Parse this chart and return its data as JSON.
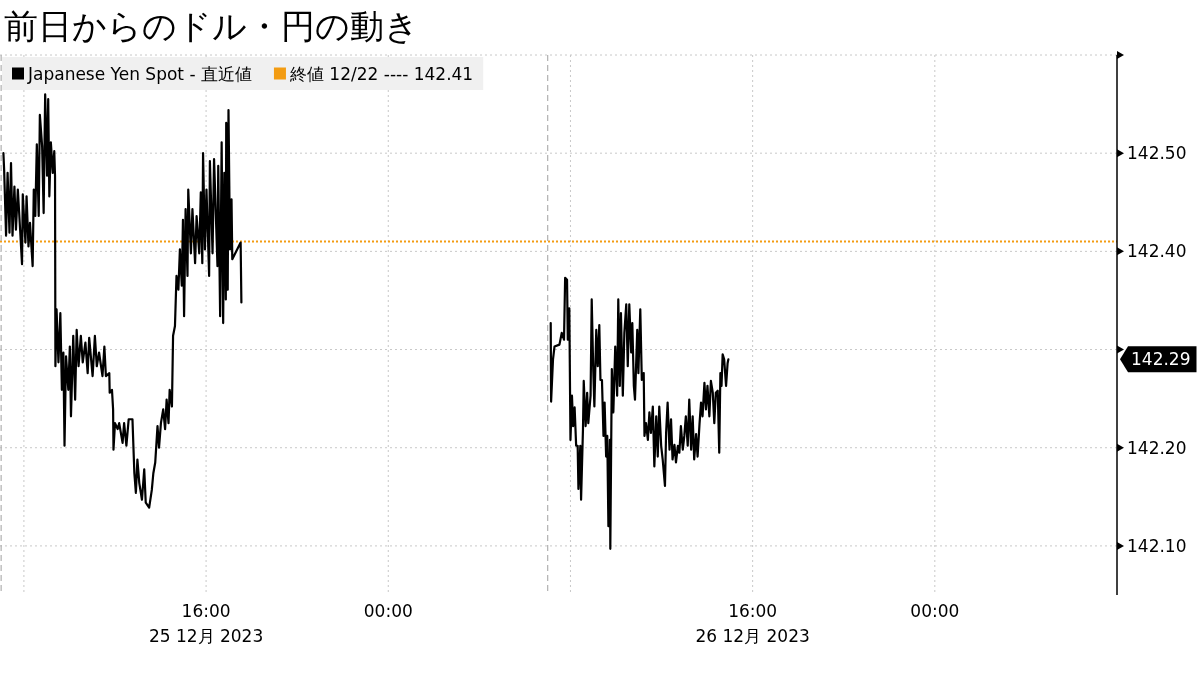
{
  "chart_data": {
    "type": "line",
    "title": "前日からのドル・円の動き",
    "series": [
      {
        "name": "Japanese Yen Spot - 直近値",
        "color": "#000000",
        "x": [
          "2023-12-25T07:06",
          "2023-12-25T07:08",
          "2023-12-25T07:13",
          "2023-12-25T07:17",
          "2023-12-25T07:22",
          "2023-12-25T07:26",
          "2023-12-25T07:30",
          "2023-12-25T07:35",
          "2023-12-25T07:39",
          "2023-12-25T07:44",
          "2023-12-25T07:50",
          "2023-12-25T07:55",
          "2023-12-25T07:57",
          "2023-12-25T08:04",
          "2023-12-25T08:07",
          "2023-12-25T08:12",
          "2023-12-25T08:16",
          "2023-12-25T08:23",
          "2023-12-25T08:26",
          "2023-12-25T08:30",
          "2023-12-25T08:34",
          "2023-12-25T08:39",
          "2023-12-25T08:42",
          "2023-12-25T08:48",
          "2023-12-25T08:52",
          "2023-12-25T08:56",
          "2023-12-25T09:01",
          "2023-12-25T09:04",
          "2023-12-25T09:07",
          "2023-12-25T09:11",
          "2023-12-25T09:16",
          "2023-12-25T09:20",
          "2023-12-25T09:22",
          "2023-12-25T09:23",
          "2023-12-25T09:26",
          "2023-12-25T09:31",
          "2023-12-25T09:36",
          "2023-12-25T09:40",
          "2023-12-25T09:44",
          "2023-12-25T09:47",
          "2023-12-25T09:51",
          "2023-12-25T09:57",
          "2023-12-25T10:01",
          "2023-12-25T10:04",
          "2023-12-25T10:10",
          "2023-12-25T10:15",
          "2023-12-25T10:19",
          "2023-12-25T10:24",
          "2023-12-25T10:30",
          "2023-12-25T10:35",
          "2023-12-25T10:42",
          "2023-12-25T10:48",
          "2023-12-25T10:52",
          "2023-12-25T11:01",
          "2023-12-25T11:07",
          "2023-12-25T11:12",
          "2023-12-25T11:18",
          "2023-12-25T11:27",
          "2023-12-25T11:32",
          "2023-12-25T11:36",
          "2023-12-25T11:45",
          "2023-12-25T11:46",
          "2023-12-25T11:52",
          "2023-12-25T11:55",
          "2023-12-25T11:56",
          "2023-12-25T12:00",
          "2023-12-25T12:07",
          "2023-12-25T12:11",
          "2023-12-25T12:20",
          "2023-12-25T12:24",
          "2023-12-25T12:30",
          "2023-12-25T12:36",
          "2023-12-25T12:46",
          "2023-12-25T12:51",
          "2023-12-25T12:55",
          "2023-12-25T12:59",
          "2023-12-25T13:04",
          "2023-12-25T13:11",
          "2023-12-25T13:17",
          "2023-12-25T13:21",
          "2023-12-25T13:30",
          "2023-12-25T13:37",
          "2023-12-25T13:41",
          "2023-12-25T13:46",
          "2023-12-25T13:52",
          "2023-12-25T13:56",
          "2023-12-25T14:01",
          "2023-12-25T14:07",
          "2023-12-25T14:12",
          "2023-12-25T14:16",
          "2023-12-25T14:21",
          "2023-12-25T14:24",
          "2023-12-25T14:30",
          "2023-12-25T14:33",
          "2023-12-25T14:38",
          "2023-12-25T14:42",
          "2023-12-25T14:47",
          "2023-12-25T14:51",
          "2023-12-25T14:56",
          "2023-12-25T14:59",
          "2023-12-25T15:02",
          "2023-12-25T15:06",
          "2023-12-25T15:11",
          "2023-12-25T15:13",
          "2023-12-25T15:20",
          "2023-12-25T15:24",
          "2023-12-25T15:31",
          "2023-12-25T15:35",
          "2023-12-25T15:42",
          "2023-12-25T15:46",
          "2023-12-25T15:50",
          "2023-12-25T15:52",
          "2023-12-25T15:57",
          "2023-12-25T16:01",
          "2023-12-25T16:08",
          "2023-12-25T16:10",
          "2023-12-25T16:17",
          "2023-12-25T16:21",
          "2023-12-25T16:30",
          "2023-12-25T16:32",
          "2023-12-25T16:37",
          "2023-12-25T16:41",
          "2023-12-25T16:45",
          "2023-12-25T16:48",
          "2023-12-25T16:52",
          "2023-12-25T16:53",
          "2023-12-25T16:57",
          "2023-12-25T16:59",
          "2023-12-25T17:03",
          "2023-12-25T17:07",
          "2023-12-25T17:09",
          "2023-12-25T17:31",
          "2023-12-25T17:33"
        ],
        "values": [
          142.5,
          142.482,
          142.416,
          142.48,
          142.419,
          142.49,
          142.416,
          142.466,
          142.422,
          142.463,
          142.422,
          142.387,
          142.458,
          142.409,
          142.456,
          142.405,
          142.429,
          142.385,
          142.463,
          142.436,
          142.509,
          142.436,
          142.539,
          142.507,
          142.439,
          142.56,
          142.477,
          142.555,
          142.456,
          142.511,
          142.48,
          142.502,
          142.477,
          142.283,
          142.341,
          142.287,
          142.337,
          142.259,
          142.297,
          142.202,
          142.293,
          142.259,
          142.303,
          142.232,
          142.314,
          142.249,
          142.32,
          142.283,
          142.314,
          142.287,
          142.307,
          142.276,
          142.312,
          142.273,
          142.314,
          142.283,
          142.297,
          142.273,
          142.303,
          142.273,
          142.276,
          142.256,
          142.259,
          142.239,
          142.198,
          142.225,
          142.219,
          142.225,
          142.205,
          142.225,
          142.202,
          142.229,
          142.229,
          142.174,
          142.154,
          142.188,
          142.164,
          142.147,
          142.178,
          142.144,
          142.139,
          142.157,
          142.174,
          142.185,
          142.222,
          142.2,
          142.225,
          142.239,
          142.219,
          142.249,
          142.225,
          142.259,
          142.242,
          142.314,
          142.324,
          142.375,
          142.361,
          142.402,
          142.365,
          142.432,
          142.334,
          142.443,
          142.375,
          142.463,
          142.398,
          142.443,
          142.388,
          142.436,
          142.398,
          142.46,
          142.388,
          142.5,
          142.402,
          142.463,
          142.375,
          142.492,
          142.398,
          142.494,
          142.385,
          142.487,
          142.334,
          142.511,
          142.327,
          142.48,
          142.351,
          142.531,
          142.361,
          142.544,
          142.402,
          142.453,
          142.392,
          142.409,
          142.348
        ]
      },
      {
        "color": "#000000",
        "x": [
          "2023-12-26T07:08",
          "2023-12-26T07:09",
          "2023-12-26T07:14",
          "2023-12-26T07:18",
          "2023-12-26T07:31",
          "2023-12-26T07:37",
          "2023-12-26T07:43",
          "2023-12-26T07:46",
          "2023-12-26T07:51",
          "2023-12-26T07:53",
          "2023-12-26T07:57",
          "2023-12-26T08:00",
          "2023-12-26T08:04",
          "2023-12-26T08:07",
          "2023-12-26T08:11",
          "2023-12-26T08:15",
          "2023-12-26T08:19",
          "2023-12-26T08:21",
          "2023-12-26T08:26",
          "2023-12-26T08:28",
          "2023-12-26T08:33",
          "2023-12-26T08:35",
          "2023-12-26T08:40",
          "2023-12-26T08:44",
          "2023-12-26T08:47",
          "2023-12-26T08:53",
          "2023-12-26T08:56",
          "2023-12-26T09:00",
          "2023-12-26T09:03",
          "2023-12-26T09:08",
          "2023-12-26T09:12",
          "2023-12-26T09:16",
          "2023-12-26T09:19",
          "2023-12-26T09:23",
          "2023-12-26T09:27",
          "2023-12-26T09:30",
          "2023-12-26T09:34",
          "2023-12-26T09:37",
          "2023-12-26T09:40",
          "2023-12-26T09:44",
          "2023-12-26T09:45",
          "2023-12-26T09:49",
          "2023-12-26T09:53",
          "2023-12-26T09:58",
          "2023-12-26T10:03",
          "2023-12-26T10:06",
          "2023-12-26T10:10",
          "2023-12-26T10:13",
          "2023-12-26T10:18",
          "2023-12-26T10:22",
          "2023-12-26T10:27",
          "2023-12-26T10:31",
          "2023-12-26T10:35",
          "2023-12-26T10:40",
          "2023-12-26T10:43",
          "2023-12-26T10:47",
          "2023-12-26T10:50",
          "2023-12-26T10:56",
          "2023-12-26T10:59",
          "2023-12-26T11:04",
          "2023-12-26T11:08",
          "2023-12-26T11:13",
          "2023-12-26T11:15",
          "2023-12-26T11:19",
          "2023-12-26T11:24",
          "2023-12-26T11:28",
          "2023-12-26T11:32",
          "2023-12-26T11:37",
          "2023-12-26T11:41",
          "2023-12-26T11:46",
          "2023-12-26T11:50",
          "2023-12-26T11:54",
          "2023-12-26T11:59",
          "2023-12-26T12:03",
          "2023-12-26T12:09",
          "2023-12-26T12:12",
          "2023-12-26T12:16",
          "2023-12-26T12:21",
          "2023-12-26T12:25",
          "2023-12-26T12:29",
          "2023-12-26T12:34",
          "2023-12-26T12:38",
          "2023-12-26T12:43",
          "2023-12-26T12:47",
          "2023-12-26T12:51",
          "2023-12-26T12:56",
          "2023-12-26T13:00",
          "2023-12-26T13:04",
          "2023-12-26T13:09",
          "2023-12-26T13:13",
          "2023-12-26T13:18",
          "2023-12-26T13:22",
          "2023-12-26T13:26",
          "2023-12-26T13:31",
          "2023-12-26T13:35",
          "2023-12-26T13:40",
          "2023-12-26T13:44",
          "2023-12-26T13:48",
          "2023-12-26T13:53",
          "2023-12-26T13:57",
          "2023-12-26T14:01",
          "2023-12-26T14:06",
          "2023-12-26T14:10",
          "2023-12-26T14:15",
          "2023-12-26T14:19",
          "2023-12-26T14:23",
          "2023-12-26T14:28",
          "2023-12-26T14:32",
          "2023-12-26T14:35",
          "2023-12-26T14:38",
          "2023-12-26T14:41",
          "2023-12-26T14:45",
          "2023-12-26T14:50",
          "2023-12-26T14:54",
          "2023-12-26T14:56"
        ],
        "values": [
          142.327,
          142.247,
          142.29,
          142.303,
          142.305,
          142.317,
          142.31,
          142.373,
          142.371,
          142.31,
          142.342,
          142.208,
          142.253,
          142.222,
          142.241,
          142.202,
          142.202,
          142.158,
          142.202,
          142.147,
          142.219,
          142.268,
          142.222,
          142.256,
          142.225,
          142.253,
          142.351,
          142.28,
          142.242,
          142.32,
          142.283,
          142.325,
          142.269,
          142.269,
          142.212,
          142.246,
          142.191,
          142.212,
          142.12,
          142.208,
          142.097,
          142.28,
          142.236,
          142.303,
          142.253,
          142.351,
          142.263,
          142.337,
          142.253,
          142.317,
          142.346,
          142.283,
          142.346,
          142.297,
          142.327,
          142.263,
          142.249,
          142.32,
          142.276,
          142.341,
          142.269,
          142.276,
          142.212,
          142.225,
          142.208,
          142.236,
          142.215,
          142.242,
          142.181,
          142.232,
          142.191,
          142.242,
          142.202,
          142.188,
          142.161,
          142.215,
          142.246,
          142.198,
          142.229,
          142.188,
          142.203,
          142.185,
          142.202,
          142.195,
          142.222,
          142.198,
          142.212,
          142.232,
          142.202,
          142.249,
          142.198,
          142.232,
          142.188,
          142.214,
          142.191,
          142.224,
          142.246,
          142.232,
          142.266,
          142.239,
          142.263,
          142.232,
          142.268,
          142.256,
          142.225,
          142.256,
          142.258,
          142.195,
          142.276,
          142.263,
          142.295,
          142.29,
          142.263,
          142.286,
          142.29
        ]
      }
    ],
    "xlim": [
      "2023-12-25T06:57",
      "2023-12-27T08:00"
    ],
    "xticks": [
      {
        "value": "2023-12-25T08:00",
        "label": null
      },
      {
        "value": "2023-12-25T16:00",
        "label": "16:00\n25 12月 2023"
      },
      {
        "value": "2023-12-26T00:00",
        "label": "00:00"
      },
      {
        "value": "2023-12-26T08:00",
        "label": null
      },
      {
        "value": "2023-12-26T16:00",
        "label": "16:00\n26 12月 2023"
      },
      {
        "value": "2023-12-27T00:00",
        "label": "00:00"
      }
    ],
    "ylim": [
      142.05,
      142.6
    ],
    "yticks": [
      {
        "value": 142.1,
        "label": "142.10"
      },
      {
        "value": 142.2,
        "label": "142.20"
      },
      {
        "value": 142.3,
        "label": null
      },
      {
        "value": 142.4,
        "label": "142.40"
      },
      {
        "value": 142.5,
        "label": "142.50"
      },
      {
        "value": 142.6,
        "label": null
      }
    ],
    "grid": true,
    "legend": "top left",
    "ref_lines": [
      {
        "axis": "y",
        "value": 142.41,
        "label": "終値 12/22 ---- 142.41",
        "color": "#f39c12",
        "line_style": "dotted"
      },
      {
        "axis": "x",
        "value": "2023-12-25T07:00",
        "label": null,
        "color": "#b0b0b0",
        "line_style": "dashed"
      },
      {
        "axis": "x",
        "value": "2023-12-26T07:00",
        "label": null,
        "color": "#b0b0b0",
        "line_style": "dashed"
      }
    ],
    "annotations": [
      "142.29"
    ]
  }
}
